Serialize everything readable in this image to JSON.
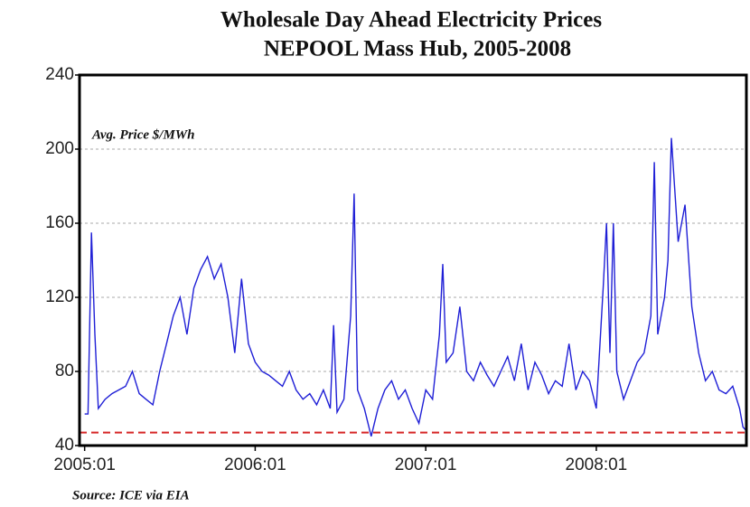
{
  "chart_data": {
    "type": "line",
    "title": "Wholesale Day Ahead Electricity Prices",
    "subtitle": "NEPOOL Mass Hub, 2005-2008",
    "annotation": "Avg. Price $/MWh",
    "source": "Source: ICE via EIA",
    "xlim": [
      2004.97,
      2008.88
    ],
    "xticks": [
      {
        "value": 2005,
        "label": "2005:01"
      },
      {
        "value": 2006,
        "label": "2006:01"
      },
      {
        "value": 2007,
        "label": "2007:01"
      },
      {
        "value": 2008,
        "label": "2008:01"
      }
    ],
    "ylim": [
      40,
      240
    ],
    "yticks": [
      40,
      80,
      120,
      160,
      200,
      240
    ],
    "grid": true,
    "reference_line": {
      "value": 47,
      "color": "#d62728"
    },
    "x": [
      2005.0,
      2005.02,
      2005.04,
      2005.06,
      2005.08,
      2005.12,
      2005.16,
      2005.2,
      2005.24,
      2005.28,
      2005.32,
      2005.36,
      2005.4,
      2005.44,
      2005.48,
      2005.52,
      2005.56,
      2005.6,
      2005.64,
      2005.68,
      2005.72,
      2005.76,
      2005.8,
      2005.84,
      2005.88,
      2005.92,
      2005.96,
      2006.0,
      2006.04,
      2006.08,
      2006.12,
      2006.16,
      2006.2,
      2006.24,
      2006.28,
      2006.32,
      2006.36,
      2006.4,
      2006.44,
      2006.46,
      2006.48,
      2006.52,
      2006.56,
      2006.58,
      2006.6,
      2006.64,
      2006.68,
      2006.72,
      2006.76,
      2006.8,
      2006.84,
      2006.88,
      2006.92,
      2006.96,
      2007.0,
      2007.04,
      2007.08,
      2007.1,
      2007.12,
      2007.16,
      2007.2,
      2007.24,
      2007.28,
      2007.32,
      2007.36,
      2007.4,
      2007.44,
      2007.48,
      2007.52,
      2007.56,
      2007.6,
      2007.64,
      2007.68,
      2007.72,
      2007.76,
      2007.8,
      2007.84,
      2007.88,
      2007.92,
      2007.96,
      2008.0,
      2008.04,
      2008.06,
      2008.08,
      2008.1,
      2008.12,
      2008.16,
      2008.2,
      2008.24,
      2008.28,
      2008.32,
      2008.34,
      2008.36,
      2008.4,
      2008.42,
      2008.44,
      2008.48,
      2008.52,
      2008.56,
      2008.6,
      2008.64,
      2008.68,
      2008.72,
      2008.76,
      2008.8,
      2008.84,
      2008.86,
      2008.88
    ],
    "series": [
      {
        "color": "#1f1fd6",
        "values": [
          57,
          57,
          155,
          100,
          60,
          65,
          68,
          70,
          72,
          80,
          68,
          65,
          62,
          80,
          95,
          110,
          120,
          100,
          125,
          135,
          142,
          130,
          138,
          120,
          90,
          130,
          95,
          85,
          80,
          78,
          75,
          72,
          80,
          70,
          65,
          68,
          62,
          70,
          60,
          105,
          58,
          65,
          110,
          176,
          70,
          60,
          45,
          60,
          70,
          75,
          65,
          70,
          60,
          52,
          70,
          65,
          100,
          138,
          85,
          90,
          115,
          80,
          75,
          85,
          78,
          72,
          80,
          88,
          75,
          95,
          70,
          85,
          78,
          68,
          75,
          72,
          95,
          70,
          80,
          75,
          60,
          125,
          160,
          90,
          160,
          80,
          65,
          75,
          85,
          90,
          110,
          193,
          100,
          120,
          140,
          206,
          150,
          170,
          115,
          90,
          75,
          80,
          70,
          68,
          72,
          60,
          50,
          48
        ]
      }
    ]
  }
}
